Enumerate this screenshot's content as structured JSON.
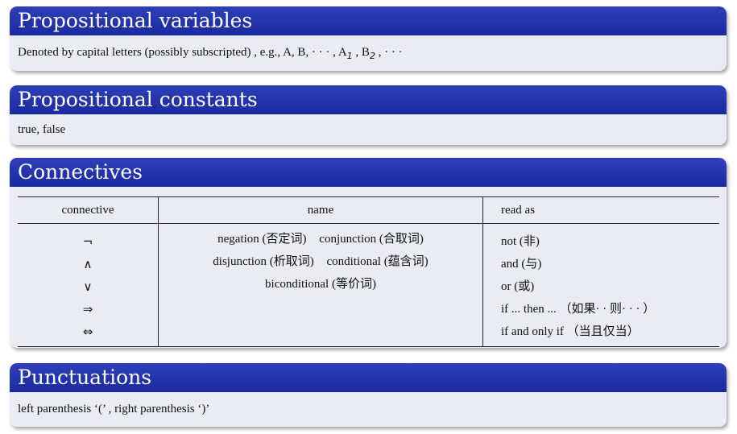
{
  "blocks": {
    "variables": {
      "title": "Propositional variables",
      "text": "Denoted by capital letters (possibly subscripted) ,  e.g., A, B, · · · , A",
      "sub1": "1",
      "mid": " , B",
      "sub2": "2",
      "end": " , · · ·"
    },
    "constants": {
      "title": "Propositional constants",
      "text": "true, false"
    },
    "connectives": {
      "title": "Connectives",
      "headers": [
        "connective",
        "name",
        "read as"
      ],
      "symbols": [
        "¬",
        "∧",
        "∨",
        "⇒",
        "⇔"
      ],
      "names": [
        [
          "negation (否定词)",
          "conjunction (合取词)"
        ],
        [
          "disjunction (析取词)",
          "conditional (蕴含词)"
        ],
        [
          "biconditional (等价词)"
        ]
      ],
      "reads": [
        "not (非)",
        "and (与)",
        "or (或)",
        "if ... then ... （如果· · 则· · · ）",
        "if and only if （当且仅当）"
      ]
    },
    "punctuations": {
      "title": "Punctuations",
      "text": "left parenthesis ‘(’ , right parenthesis ‘)’"
    }
  }
}
